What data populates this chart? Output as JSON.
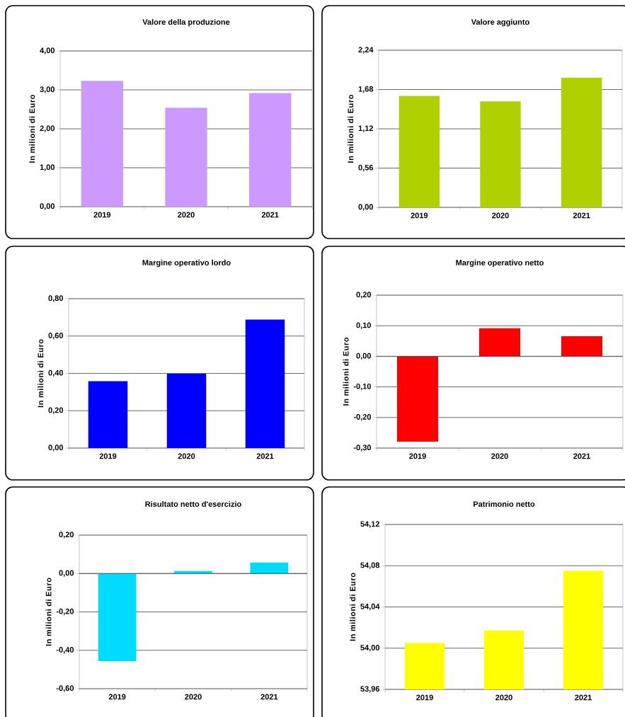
{
  "chart_data": [
    {
      "type": "bar",
      "title": "Valore della produzione",
      "ylabel": "In milioni di Euro",
      "categories": [
        "2019",
        "2020",
        "2021"
      ],
      "values": [
        3.23,
        2.54,
        2.92
      ],
      "color": "#cc99ff",
      "ylim": [
        0,
        4
      ],
      "yticks": [
        {
          "value": 0,
          "label": "0,00"
        },
        {
          "value": 1,
          "label": "1,00"
        },
        {
          "value": 2,
          "label": "2,00"
        },
        {
          "value": 3,
          "label": "3,00"
        },
        {
          "value": 4,
          "label": "4,00"
        }
      ],
      "grid": "y"
    },
    {
      "type": "bar",
      "title": "Valore aggiunto",
      "ylabel": "In milioni di Euro",
      "categories": [
        "2019",
        "2020",
        "2021"
      ],
      "values": [
        1.59,
        1.51,
        1.85
      ],
      "color": "#b0d000",
      "ylim": [
        0,
        2.24
      ],
      "yticks": [
        {
          "value": 0,
          "label": "0,00"
        },
        {
          "value": 0.56,
          "label": "0,56"
        },
        {
          "value": 1.12,
          "label": "1,12"
        },
        {
          "value": 1.68,
          "label": "1,68"
        },
        {
          "value": 2.24,
          "label": "2,24"
        }
      ],
      "grid": "y"
    },
    {
      "type": "bar",
      "title": "Margine operativo lordo",
      "ylabel": "In milioni di Euro",
      "categories": [
        "2019",
        "2020",
        "2021"
      ],
      "values": [
        0.358,
        0.398,
        0.688
      ],
      "color": "#0000ff",
      "ylim": [
        0,
        0.8
      ],
      "yticks": [
        {
          "value": 0,
          "label": "0,00"
        },
        {
          "value": 0.2,
          "label": "0,20"
        },
        {
          "value": 0.4,
          "label": "0,40"
        },
        {
          "value": 0.6,
          "label": "0,60"
        },
        {
          "value": 0.8,
          "label": "0,80"
        }
      ],
      "grid": "y"
    },
    {
      "type": "bar",
      "title": "Margine operativo netto",
      "ylabel": "In milioni di Euro",
      "categories": [
        "2019",
        "2020",
        "2021"
      ],
      "values": [
        -0.279,
        0.092,
        0.066
      ],
      "color": "#ff0000",
      "ylim": [
        -0.3,
        0.2
      ],
      "yticks": [
        {
          "value": -0.3,
          "label": "-0,30"
        },
        {
          "value": -0.2,
          "label": "-0,20"
        },
        {
          "value": -0.1,
          "label": "-0,10"
        },
        {
          "value": 0,
          "label": "0,00"
        },
        {
          "value": 0.1,
          "label": "0,10"
        },
        {
          "value": 0.2,
          "label": "0,20"
        }
      ],
      "grid": "y"
    },
    {
      "type": "bar",
      "title": "Risultato netto d'esercizio",
      "ylabel": "In milioni di Euro",
      "categories": [
        "2019",
        "2020",
        "2021"
      ],
      "values": [
        -0.456,
        0.013,
        0.057
      ],
      "color": "#00dcff",
      "ylim": [
        -0.6,
        0.2
      ],
      "yticks": [
        {
          "value": -0.6,
          "label": "-0,60"
        },
        {
          "value": -0.4,
          "label": "-0,40"
        },
        {
          "value": -0.2,
          "label": "-0,20"
        },
        {
          "value": 0,
          "label": "0,00"
        },
        {
          "value": 0.2,
          "label": "0,20"
        }
      ],
      "grid": "y"
    },
    {
      "type": "bar",
      "title": "Patrimonio netto",
      "ylabel": "In milioni di Euro",
      "categories": [
        "2019",
        "2020",
        "2021"
      ],
      "values": [
        54.005,
        54.017,
        54.075
      ],
      "color": "#ffff00",
      "ylim": [
        53.96,
        54.12
      ],
      "yticks": [
        {
          "value": 53.96,
          "label": "53,96"
        },
        {
          "value": 54.0,
          "label": "54,00"
        },
        {
          "value": 54.04,
          "label": "54,04"
        },
        {
          "value": 54.08,
          "label": "54,08"
        },
        {
          "value": 54.12,
          "label": "54,12"
        }
      ],
      "grid": "y"
    }
  ]
}
